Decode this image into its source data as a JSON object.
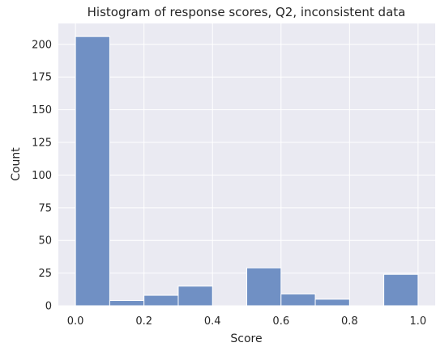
{
  "chart_data": {
    "type": "bar",
    "title": "Histogram of response scores, Q2, inconsistent data",
    "xlabel": "Score",
    "ylabel": "Count",
    "bin_edges": [
      0.0,
      0.1,
      0.2,
      0.3,
      0.4,
      0.5,
      0.6,
      0.7,
      0.8,
      0.9,
      1.0
    ],
    "values": [
      206,
      4,
      8,
      15,
      0,
      29,
      9,
      5,
      0,
      24
    ],
    "x_ticks": [
      "0.0",
      "0.2",
      "0.4",
      "0.6",
      "0.8",
      "1.0"
    ],
    "y_ticks": [
      "0",
      "25",
      "50",
      "75",
      "100",
      "125",
      "150",
      "175",
      "200"
    ],
    "xlim": [
      -0.05,
      1.05
    ],
    "ylim": [
      0,
      216
    ],
    "grid": true,
    "colors": {
      "bar_fill": "#7090c4",
      "bar_edge": "#ffffff",
      "plot_background": "#eaeaf2",
      "grid": "#ffffff"
    }
  }
}
